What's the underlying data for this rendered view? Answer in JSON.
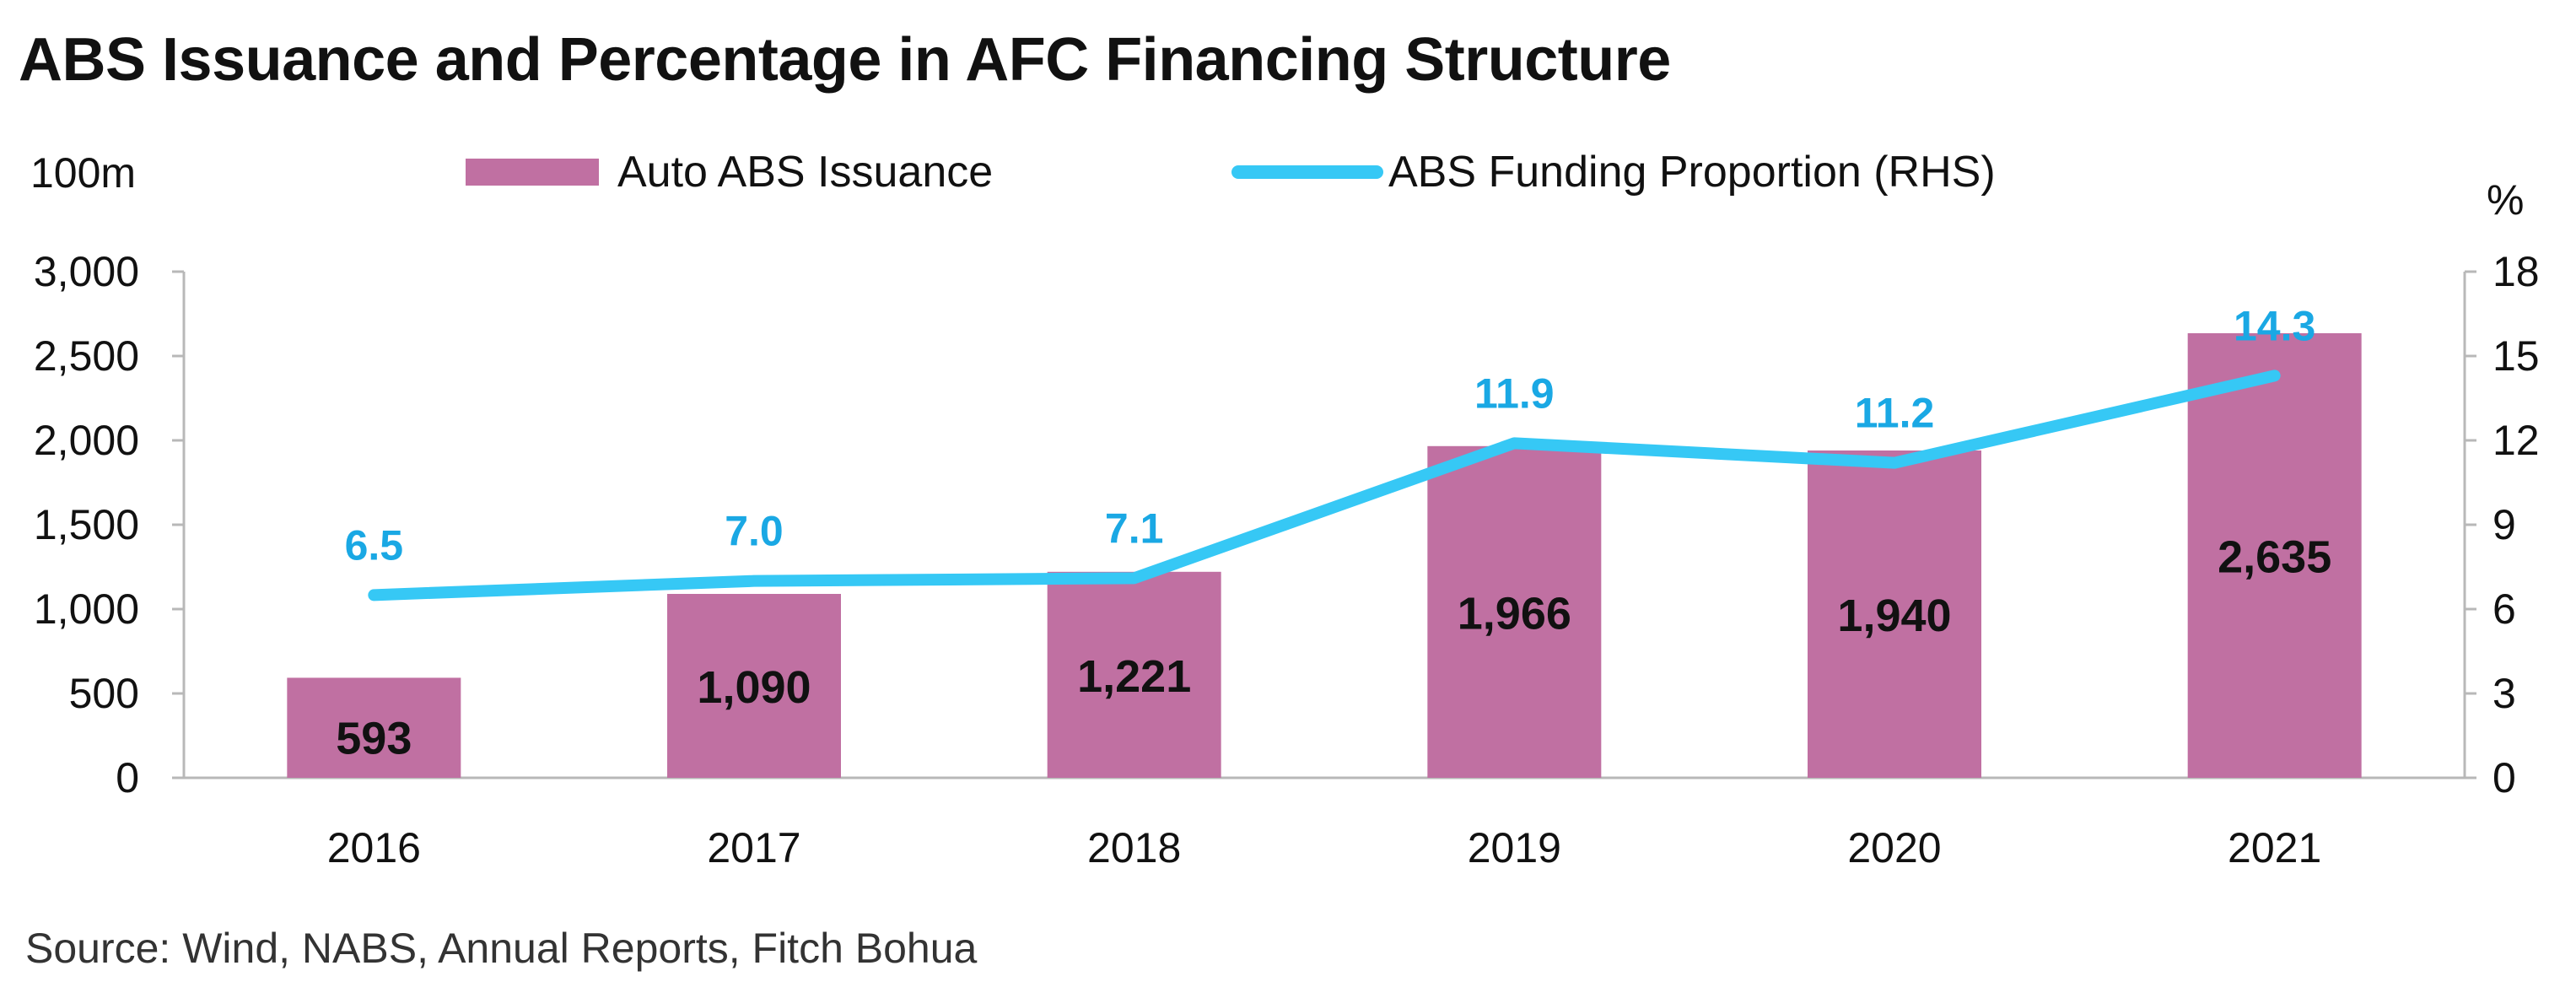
{
  "title": "ABS Issuance and Percentage in AFC Financing Structure",
  "source": "Source: Wind, NABS, Annual Reports, Fitch Bohua",
  "colors": {
    "bar": "#c070a2",
    "line": "#36c8f5",
    "line_label": "#1aa8e4",
    "axis": "#b8b8b8"
  },
  "chart_data": {
    "type": "bar",
    "categories": [
      "2016",
      "2017",
      "2018",
      "2019",
      "2020",
      "2021"
    ],
    "series": [
      {
        "name": "Auto ABS Issuance",
        "type": "bar",
        "axis": "left",
        "values": [
          593,
          1090,
          1221,
          1966,
          1940,
          2635
        ],
        "labels": [
          "593",
          "1,090",
          "1,221",
          "1,966",
          "1,940",
          "2,635"
        ]
      },
      {
        "name": "ABS Funding Proportion (RHS)",
        "type": "line",
        "axis": "right",
        "values": [
          6.5,
          7.0,
          7.1,
          11.9,
          11.2,
          14.3
        ],
        "labels": [
          "6.5",
          "7.0",
          "7.1",
          "11.9",
          "11.2",
          "14.3"
        ]
      }
    ],
    "ylabel": "100m",
    "y2label": "%",
    "ylim": [
      0,
      3000
    ],
    "y2lim": [
      0,
      18
    ],
    "yticks": [
      "0",
      "500",
      "1,000",
      "1,500",
      "2,000",
      "2,500",
      "3,000"
    ],
    "y2ticks": [
      "0",
      "3",
      "6",
      "9",
      "12",
      "15",
      "18"
    ],
    "grid": false,
    "legend_position": "top"
  }
}
